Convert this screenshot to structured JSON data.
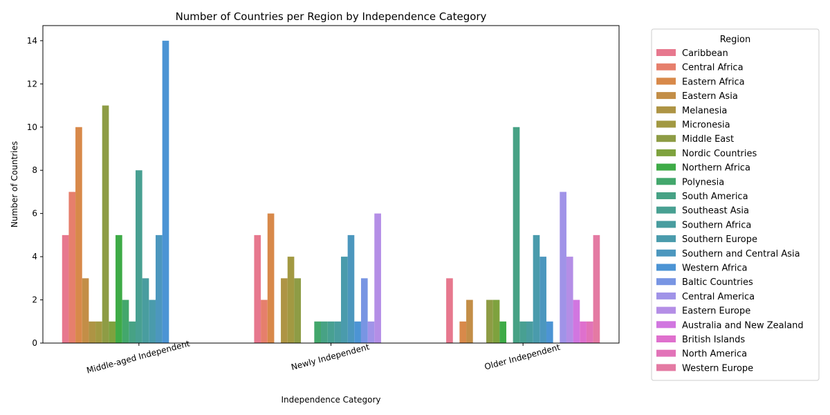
{
  "chart_data": {
    "type": "bar",
    "title": "Number of Countries per Region by Independence Category",
    "xlabel": "Independence Category",
    "ylabel": "Number of Countries",
    "categories": [
      "Middle-aged Independent",
      "Newly Independent",
      "Older Independent"
    ],
    "ylim": [
      0,
      14.7
    ],
    "yticks": [
      0,
      2,
      4,
      6,
      8,
      10,
      12,
      14
    ],
    "grid": false,
    "legend": {
      "title": "Region",
      "placement": "outside-right"
    },
    "series": [
      {
        "name": "Caribbean",
        "color": "#e7788e",
        "values": [
          5,
          5,
          3
        ]
      },
      {
        "name": "Central Africa",
        "color": "#e67f6c",
        "values": [
          7,
          2,
          0
        ]
      },
      {
        "name": "Eastern Africa",
        "color": "#d8894a",
        "values": [
          10,
          6,
          1
        ]
      },
      {
        "name": "Eastern Asia",
        "color": "#c38e47",
        "values": [
          3,
          0,
          2
        ]
      },
      {
        "name": "Melanesia",
        "color": "#ae9444",
        "values": [
          1,
          3,
          0
        ]
      },
      {
        "name": "Micronesia",
        "color": "#a29942",
        "values": [
          1,
          4,
          0
        ]
      },
      {
        "name": "Middle East",
        "color": "#8e9c45",
        "values": [
          11,
          3,
          2
        ]
      },
      {
        "name": "Nordic Countries",
        "color": "#7ea23e",
        "values": [
          1,
          0,
          2
        ]
      },
      {
        "name": "Northern Africa",
        "color": "#3eab47",
        "values": [
          5,
          0,
          1
        ]
      },
      {
        "name": "Polynesia",
        "color": "#43a76c",
        "values": [
          2,
          1,
          0
        ]
      },
      {
        "name": "South America",
        "color": "#47a285",
        "values": [
          1,
          1,
          10
        ]
      },
      {
        "name": "Southeast Asia",
        "color": "#48a092",
        "values": [
          8,
          1,
          1
        ]
      },
      {
        "name": "Southern Africa",
        "color": "#499d9f",
        "values": [
          3,
          1,
          1
        ]
      },
      {
        "name": "Southern Europe",
        "color": "#4a9bac",
        "values": [
          2,
          4,
          5
        ]
      },
      {
        "name": "Southern and Central Asia",
        "color": "#4c97be",
        "values": [
          5,
          5,
          4
        ]
      },
      {
        "name": "Western Africa",
        "color": "#4c94d4",
        "values": [
          14,
          1,
          1
        ]
      },
      {
        "name": "Baltic Countries",
        "color": "#7895e3",
        "values": [
          0,
          3,
          0
        ]
      },
      {
        "name": "Central America",
        "color": "#a093e8",
        "values": [
          0,
          1,
          7
        ]
      },
      {
        "name": "Eastern Europe",
        "color": "#b48ee6",
        "values": [
          0,
          6,
          4
        ]
      },
      {
        "name": "Australia and New Zealand",
        "color": "#d176e0",
        "values": [
          0,
          0,
          2
        ]
      },
      {
        "name": "British Islands",
        "color": "#df70cd",
        "values": [
          0,
          0,
          1
        ]
      },
      {
        "name": "North America",
        "color": "#e273b8",
        "values": [
          0,
          0,
          1
        ]
      },
      {
        "name": "Western Europe",
        "color": "#e47aa3",
        "values": [
          0,
          0,
          5
        ]
      }
    ]
  }
}
